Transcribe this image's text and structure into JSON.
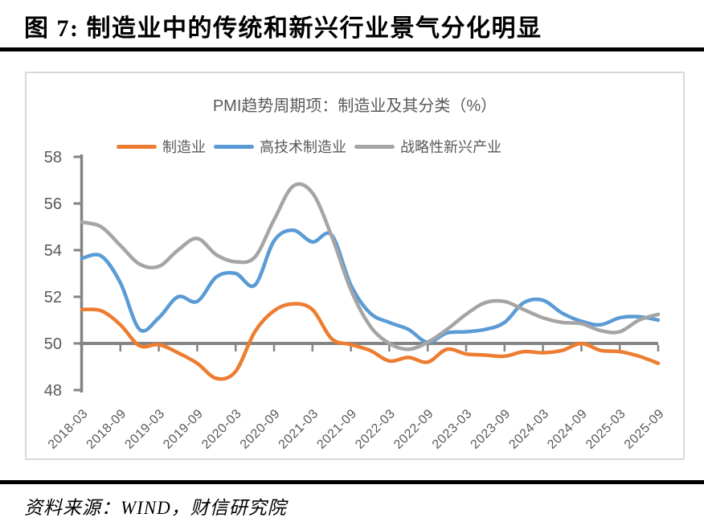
{
  "figure": {
    "caption": "图 7: 制造业中的传统和新兴行业景气分化明显",
    "source": "资料来源：WIND，财信研究院"
  },
  "chart_data": {
    "type": "line",
    "title": "PMI趋势周期项：制造业及其分类（%）",
    "x": [
      "2018-03",
      "2018-06",
      "2018-09",
      "2018-12",
      "2019-03",
      "2019-06",
      "2019-09",
      "2019-12",
      "2020-03",
      "2020-06",
      "2020-09",
      "2020-12",
      "2021-03",
      "2021-06",
      "2021-09",
      "2021-12",
      "2022-03",
      "2022-06",
      "2022-09",
      "2022-12",
      "2023-03",
      "2023-06",
      "2023-09",
      "2023-12",
      "2024-03",
      "2024-06",
      "2024-09",
      "2024-12",
      "2025-03",
      "2025-06",
      "2025-09"
    ],
    "x_tick_labels": [
      "2018-03",
      "2018-09",
      "2019-03",
      "2019-09",
      "2020-03",
      "2020-09",
      "2021-03",
      "2021-09",
      "2022-03",
      "2022-09",
      "2023-03",
      "2023-09",
      "2024-03",
      "2024-09",
      "2025-03",
      "2025-09"
    ],
    "yticks": [
      48,
      50,
      52,
      54,
      56,
      58
    ],
    "ylim": [
      48,
      58
    ],
    "baseline": 50,
    "grid": false,
    "legend_position": "top",
    "axis_color": "#848484",
    "label_color": "#595959",
    "series": [
      {
        "name": "制造业",
        "color": "#ED7D31",
        "values": [
          51.45,
          51.4,
          50.8,
          49.9,
          49.95,
          49.6,
          49.15,
          48.5,
          48.8,
          50.5,
          51.4,
          51.7,
          51.45,
          50.2,
          49.95,
          49.7,
          49.25,
          49.4,
          49.2,
          49.75,
          49.55,
          49.5,
          49.45,
          49.65,
          49.6,
          49.7,
          50.0,
          49.7,
          49.65,
          49.45,
          49.15
        ]
      },
      {
        "name": "高技术制造业",
        "color": "#5B9BD5",
        "values": [
          53.65,
          53.75,
          52.6,
          50.6,
          51.1,
          52.0,
          51.8,
          52.85,
          53.0,
          52.5,
          54.4,
          54.85,
          54.35,
          54.65,
          52.5,
          51.3,
          50.9,
          50.6,
          50.05,
          50.45,
          50.5,
          50.6,
          50.9,
          51.75,
          51.85,
          51.3,
          50.95,
          50.8,
          51.1,
          51.15,
          51.0
        ]
      },
      {
        "name": "战略性新兴产业",
        "color": "#A5A5A5",
        "values": [
          55.2,
          55.0,
          54.2,
          53.4,
          53.3,
          54.0,
          54.5,
          53.8,
          53.5,
          53.7,
          55.3,
          56.75,
          56.45,
          54.6,
          52.3,
          50.75,
          50.0,
          49.75,
          50.05,
          50.6,
          51.25,
          51.75,
          51.8,
          51.45,
          51.1,
          50.9,
          50.85,
          50.55,
          50.5,
          51.0,
          51.25
        ]
      }
    ]
  }
}
